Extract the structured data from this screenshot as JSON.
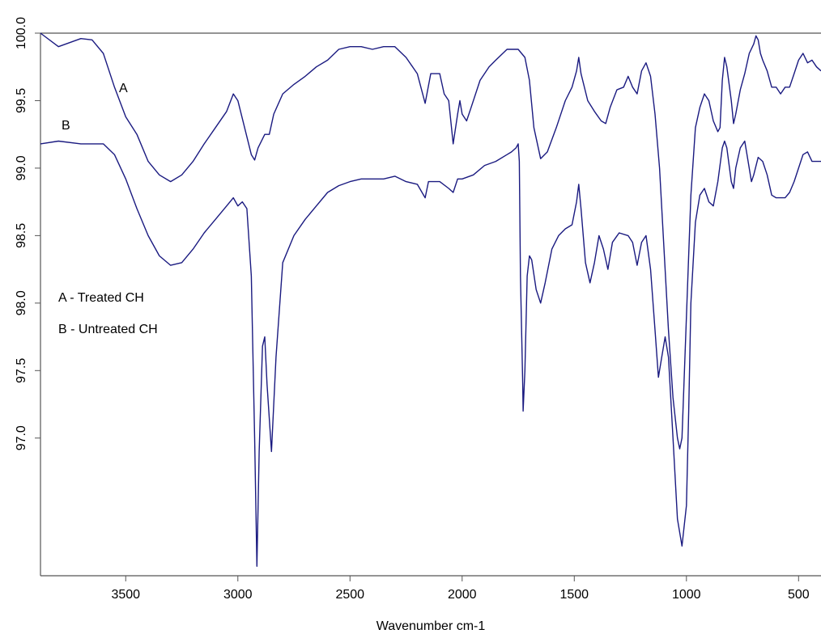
{
  "chart_data": {
    "type": "line",
    "title": "",
    "xlabel": "Wavenumber cm-1",
    "ylabel": "",
    "xlim": [
      3880,
      400
    ],
    "ylim": [
      95.98,
      100.0
    ],
    "x_reversed": true,
    "grid": false,
    "x_ticks": [
      3500,
      3000,
      2500,
      2000,
      1500,
      1000,
      500
    ],
    "y_ticks": [
      97.0,
      97.5,
      98.0,
      98.5,
      99.0,
      99.5,
      100.0
    ],
    "y_tick_labels": [
      "97.0",
      "97.5",
      "98.0",
      "98.5",
      "99.0",
      "99.5",
      "100.0"
    ],
    "line_color": "#1a1a80",
    "series": [
      {
        "name": "A",
        "label": "A",
        "points": [
          [
            3880,
            100.0
          ],
          [
            3800,
            99.9
          ],
          [
            3700,
            99.96
          ],
          [
            3650,
            99.95
          ],
          [
            3600,
            99.85
          ],
          [
            3550,
            99.6
          ],
          [
            3500,
            99.38
          ],
          [
            3450,
            99.25
          ],
          [
            3400,
            99.05
          ],
          [
            3350,
            98.95
          ],
          [
            3300,
            98.9
          ],
          [
            3250,
            98.95
          ],
          [
            3200,
            99.05
          ],
          [
            3150,
            99.18
          ],
          [
            3100,
            99.3
          ],
          [
            3050,
            99.42
          ],
          [
            3020,
            99.55
          ],
          [
            3000,
            99.5
          ],
          [
            2970,
            99.3
          ],
          [
            2940,
            99.1
          ],
          [
            2925,
            99.06
          ],
          [
            2910,
            99.15
          ],
          [
            2880,
            99.25
          ],
          [
            2860,
            99.25
          ],
          [
            2840,
            99.4
          ],
          [
            2800,
            99.55
          ],
          [
            2750,
            99.62
          ],
          [
            2700,
            99.68
          ],
          [
            2650,
            99.75
          ],
          [
            2600,
            99.8
          ],
          [
            2550,
            99.88
          ],
          [
            2500,
            99.9
          ],
          [
            2450,
            99.9
          ],
          [
            2400,
            99.88
          ],
          [
            2350,
            99.9
          ],
          [
            2300,
            99.9
          ],
          [
            2250,
            99.82
          ],
          [
            2200,
            99.7
          ],
          [
            2165,
            99.48
          ],
          [
            2140,
            99.7
          ],
          [
            2100,
            99.7
          ],
          [
            2080,
            99.55
          ],
          [
            2060,
            99.5
          ],
          [
            2040,
            99.18
          ],
          [
            2020,
            99.4
          ],
          [
            2010,
            99.5
          ],
          [
            2000,
            99.4
          ],
          [
            1980,
            99.35
          ],
          [
            1960,
            99.45
          ],
          [
            1920,
            99.65
          ],
          [
            1880,
            99.75
          ],
          [
            1850,
            99.8
          ],
          [
            1800,
            99.88
          ],
          [
            1750,
            99.88
          ],
          [
            1720,
            99.82
          ],
          [
            1700,
            99.65
          ],
          [
            1680,
            99.3
          ],
          [
            1650,
            99.07
          ],
          [
            1620,
            99.12
          ],
          [
            1580,
            99.3
          ],
          [
            1540,
            99.5
          ],
          [
            1510,
            99.6
          ],
          [
            1490,
            99.72
          ],
          [
            1480,
            99.82
          ],
          [
            1470,
            99.7
          ],
          [
            1440,
            99.5
          ],
          [
            1410,
            99.42
          ],
          [
            1380,
            99.35
          ],
          [
            1360,
            99.33
          ],
          [
            1340,
            99.45
          ],
          [
            1310,
            99.58
          ],
          [
            1280,
            99.6
          ],
          [
            1260,
            99.68
          ],
          [
            1240,
            99.6
          ],
          [
            1220,
            99.55
          ],
          [
            1200,
            99.72
          ],
          [
            1180,
            99.78
          ],
          [
            1160,
            99.68
          ],
          [
            1140,
            99.4
          ],
          [
            1120,
            99.0
          ],
          [
            1100,
            98.4
          ],
          [
            1080,
            97.8
          ],
          [
            1060,
            97.3
          ],
          [
            1040,
            97.0
          ],
          [
            1030,
            96.92
          ],
          [
            1020,
            97.0
          ],
          [
            1000,
            97.9
          ],
          [
            980,
            98.8
          ],
          [
            960,
            99.3
          ],
          [
            940,
            99.45
          ],
          [
            920,
            99.55
          ],
          [
            900,
            99.5
          ],
          [
            880,
            99.35
          ],
          [
            860,
            99.27
          ],
          [
            850,
            99.3
          ],
          [
            840,
            99.65
          ],
          [
            830,
            99.82
          ],
          [
            820,
            99.75
          ],
          [
            800,
            99.5
          ],
          [
            790,
            99.33
          ],
          [
            780,
            99.4
          ],
          [
            760,
            99.58
          ],
          [
            740,
            99.7
          ],
          [
            720,
            99.85
          ],
          [
            700,
            99.92
          ],
          [
            690,
            99.98
          ],
          [
            680,
            99.95
          ],
          [
            670,
            99.85
          ],
          [
            660,
            99.8
          ],
          [
            640,
            99.72
          ],
          [
            620,
            99.6
          ],
          [
            600,
            99.6
          ],
          [
            580,
            99.55
          ],
          [
            560,
            99.6
          ],
          [
            540,
            99.6
          ],
          [
            520,
            99.7
          ],
          [
            500,
            99.8
          ],
          [
            480,
            99.85
          ],
          [
            460,
            99.78
          ],
          [
            440,
            99.8
          ],
          [
            420,
            99.75
          ],
          [
            400,
            99.72
          ]
        ]
      },
      {
        "name": "B",
        "label": "B",
        "points": [
          [
            3880,
            99.18
          ],
          [
            3800,
            99.2
          ],
          [
            3700,
            99.18
          ],
          [
            3600,
            99.18
          ],
          [
            3550,
            99.1
          ],
          [
            3500,
            98.92
          ],
          [
            3450,
            98.7
          ],
          [
            3400,
            98.5
          ],
          [
            3350,
            98.35
          ],
          [
            3300,
            98.28
          ],
          [
            3250,
            98.3
          ],
          [
            3200,
            98.4
          ],
          [
            3150,
            98.52
          ],
          [
            3100,
            98.62
          ],
          [
            3050,
            98.72
          ],
          [
            3020,
            98.78
          ],
          [
            3000,
            98.72
          ],
          [
            2980,
            98.75
          ],
          [
            2960,
            98.7
          ],
          [
            2940,
            98.2
          ],
          [
            2925,
            97.0
          ],
          [
            2915,
            96.05
          ],
          [
            2905,
            96.9
          ],
          [
            2890,
            97.68
          ],
          [
            2880,
            97.75
          ],
          [
            2870,
            97.4
          ],
          [
            2850,
            96.9
          ],
          [
            2830,
            97.6
          ],
          [
            2800,
            98.3
          ],
          [
            2750,
            98.5
          ],
          [
            2700,
            98.62
          ],
          [
            2650,
            98.72
          ],
          [
            2600,
            98.82
          ],
          [
            2550,
            98.87
          ],
          [
            2500,
            98.9
          ],
          [
            2450,
            98.92
          ],
          [
            2400,
            98.92
          ],
          [
            2350,
            98.92
          ],
          [
            2300,
            98.94
          ],
          [
            2250,
            98.9
          ],
          [
            2200,
            98.88
          ],
          [
            2165,
            98.78
          ],
          [
            2150,
            98.9
          ],
          [
            2100,
            98.9
          ],
          [
            2060,
            98.85
          ],
          [
            2040,
            98.82
          ],
          [
            2020,
            98.92
          ],
          [
            2000,
            98.92
          ],
          [
            1950,
            98.95
          ],
          [
            1900,
            99.02
          ],
          [
            1850,
            99.05
          ],
          [
            1800,
            99.1
          ],
          [
            1780,
            99.12
          ],
          [
            1760,
            99.15
          ],
          [
            1750,
            99.18
          ],
          [
            1745,
            99.05
          ],
          [
            1740,
            98.2
          ],
          [
            1735,
            97.8
          ],
          [
            1730,
            97.4
          ],
          [
            1728,
            97.2
          ],
          [
            1720,
            97.5
          ],
          [
            1710,
            98.2
          ],
          [
            1700,
            98.35
          ],
          [
            1690,
            98.32
          ],
          [
            1670,
            98.1
          ],
          [
            1650,
            98.0
          ],
          [
            1630,
            98.15
          ],
          [
            1600,
            98.4
          ],
          [
            1570,
            98.5
          ],
          [
            1540,
            98.55
          ],
          [
            1510,
            98.58
          ],
          [
            1490,
            98.75
          ],
          [
            1480,
            98.88
          ],
          [
            1470,
            98.7
          ],
          [
            1450,
            98.3
          ],
          [
            1430,
            98.15
          ],
          [
            1410,
            98.3
          ],
          [
            1390,
            98.5
          ],
          [
            1370,
            98.4
          ],
          [
            1350,
            98.25
          ],
          [
            1330,
            98.45
          ],
          [
            1300,
            98.52
          ],
          [
            1260,
            98.5
          ],
          [
            1240,
            98.45
          ],
          [
            1220,
            98.28
          ],
          [
            1200,
            98.45
          ],
          [
            1180,
            98.5
          ],
          [
            1160,
            98.25
          ],
          [
            1140,
            97.8
          ],
          [
            1125,
            97.45
          ],
          [
            1110,
            97.6
          ],
          [
            1095,
            97.75
          ],
          [
            1080,
            97.6
          ],
          [
            1060,
            97.0
          ],
          [
            1040,
            96.4
          ],
          [
            1020,
            96.2
          ],
          [
            1000,
            96.5
          ],
          [
            990,
            97.2
          ],
          [
            980,
            98.0
          ],
          [
            960,
            98.6
          ],
          [
            940,
            98.8
          ],
          [
            920,
            98.85
          ],
          [
            900,
            98.75
          ],
          [
            880,
            98.72
          ],
          [
            860,
            98.9
          ],
          [
            840,
            99.15
          ],
          [
            830,
            99.2
          ],
          [
            820,
            99.15
          ],
          [
            800,
            98.9
          ],
          [
            790,
            98.85
          ],
          [
            780,
            99.0
          ],
          [
            760,
            99.15
          ],
          [
            740,
            99.2
          ],
          [
            730,
            99.1
          ],
          [
            710,
            98.9
          ],
          [
            700,
            98.95
          ],
          [
            680,
            99.08
          ],
          [
            660,
            99.05
          ],
          [
            640,
            98.95
          ],
          [
            620,
            98.8
          ],
          [
            600,
            98.78
          ],
          [
            580,
            98.78
          ],
          [
            560,
            98.78
          ],
          [
            540,
            98.82
          ],
          [
            520,
            98.9
          ],
          [
            500,
            99.0
          ],
          [
            480,
            99.1
          ],
          [
            460,
            99.12
          ],
          [
            440,
            99.05
          ],
          [
            420,
            99.05
          ],
          [
            400,
            99.05
          ]
        ]
      }
    ],
    "annotations": [
      {
        "text": "A -  Treated CH"
      },
      {
        "text": "B -  Untreated CH"
      }
    ]
  }
}
